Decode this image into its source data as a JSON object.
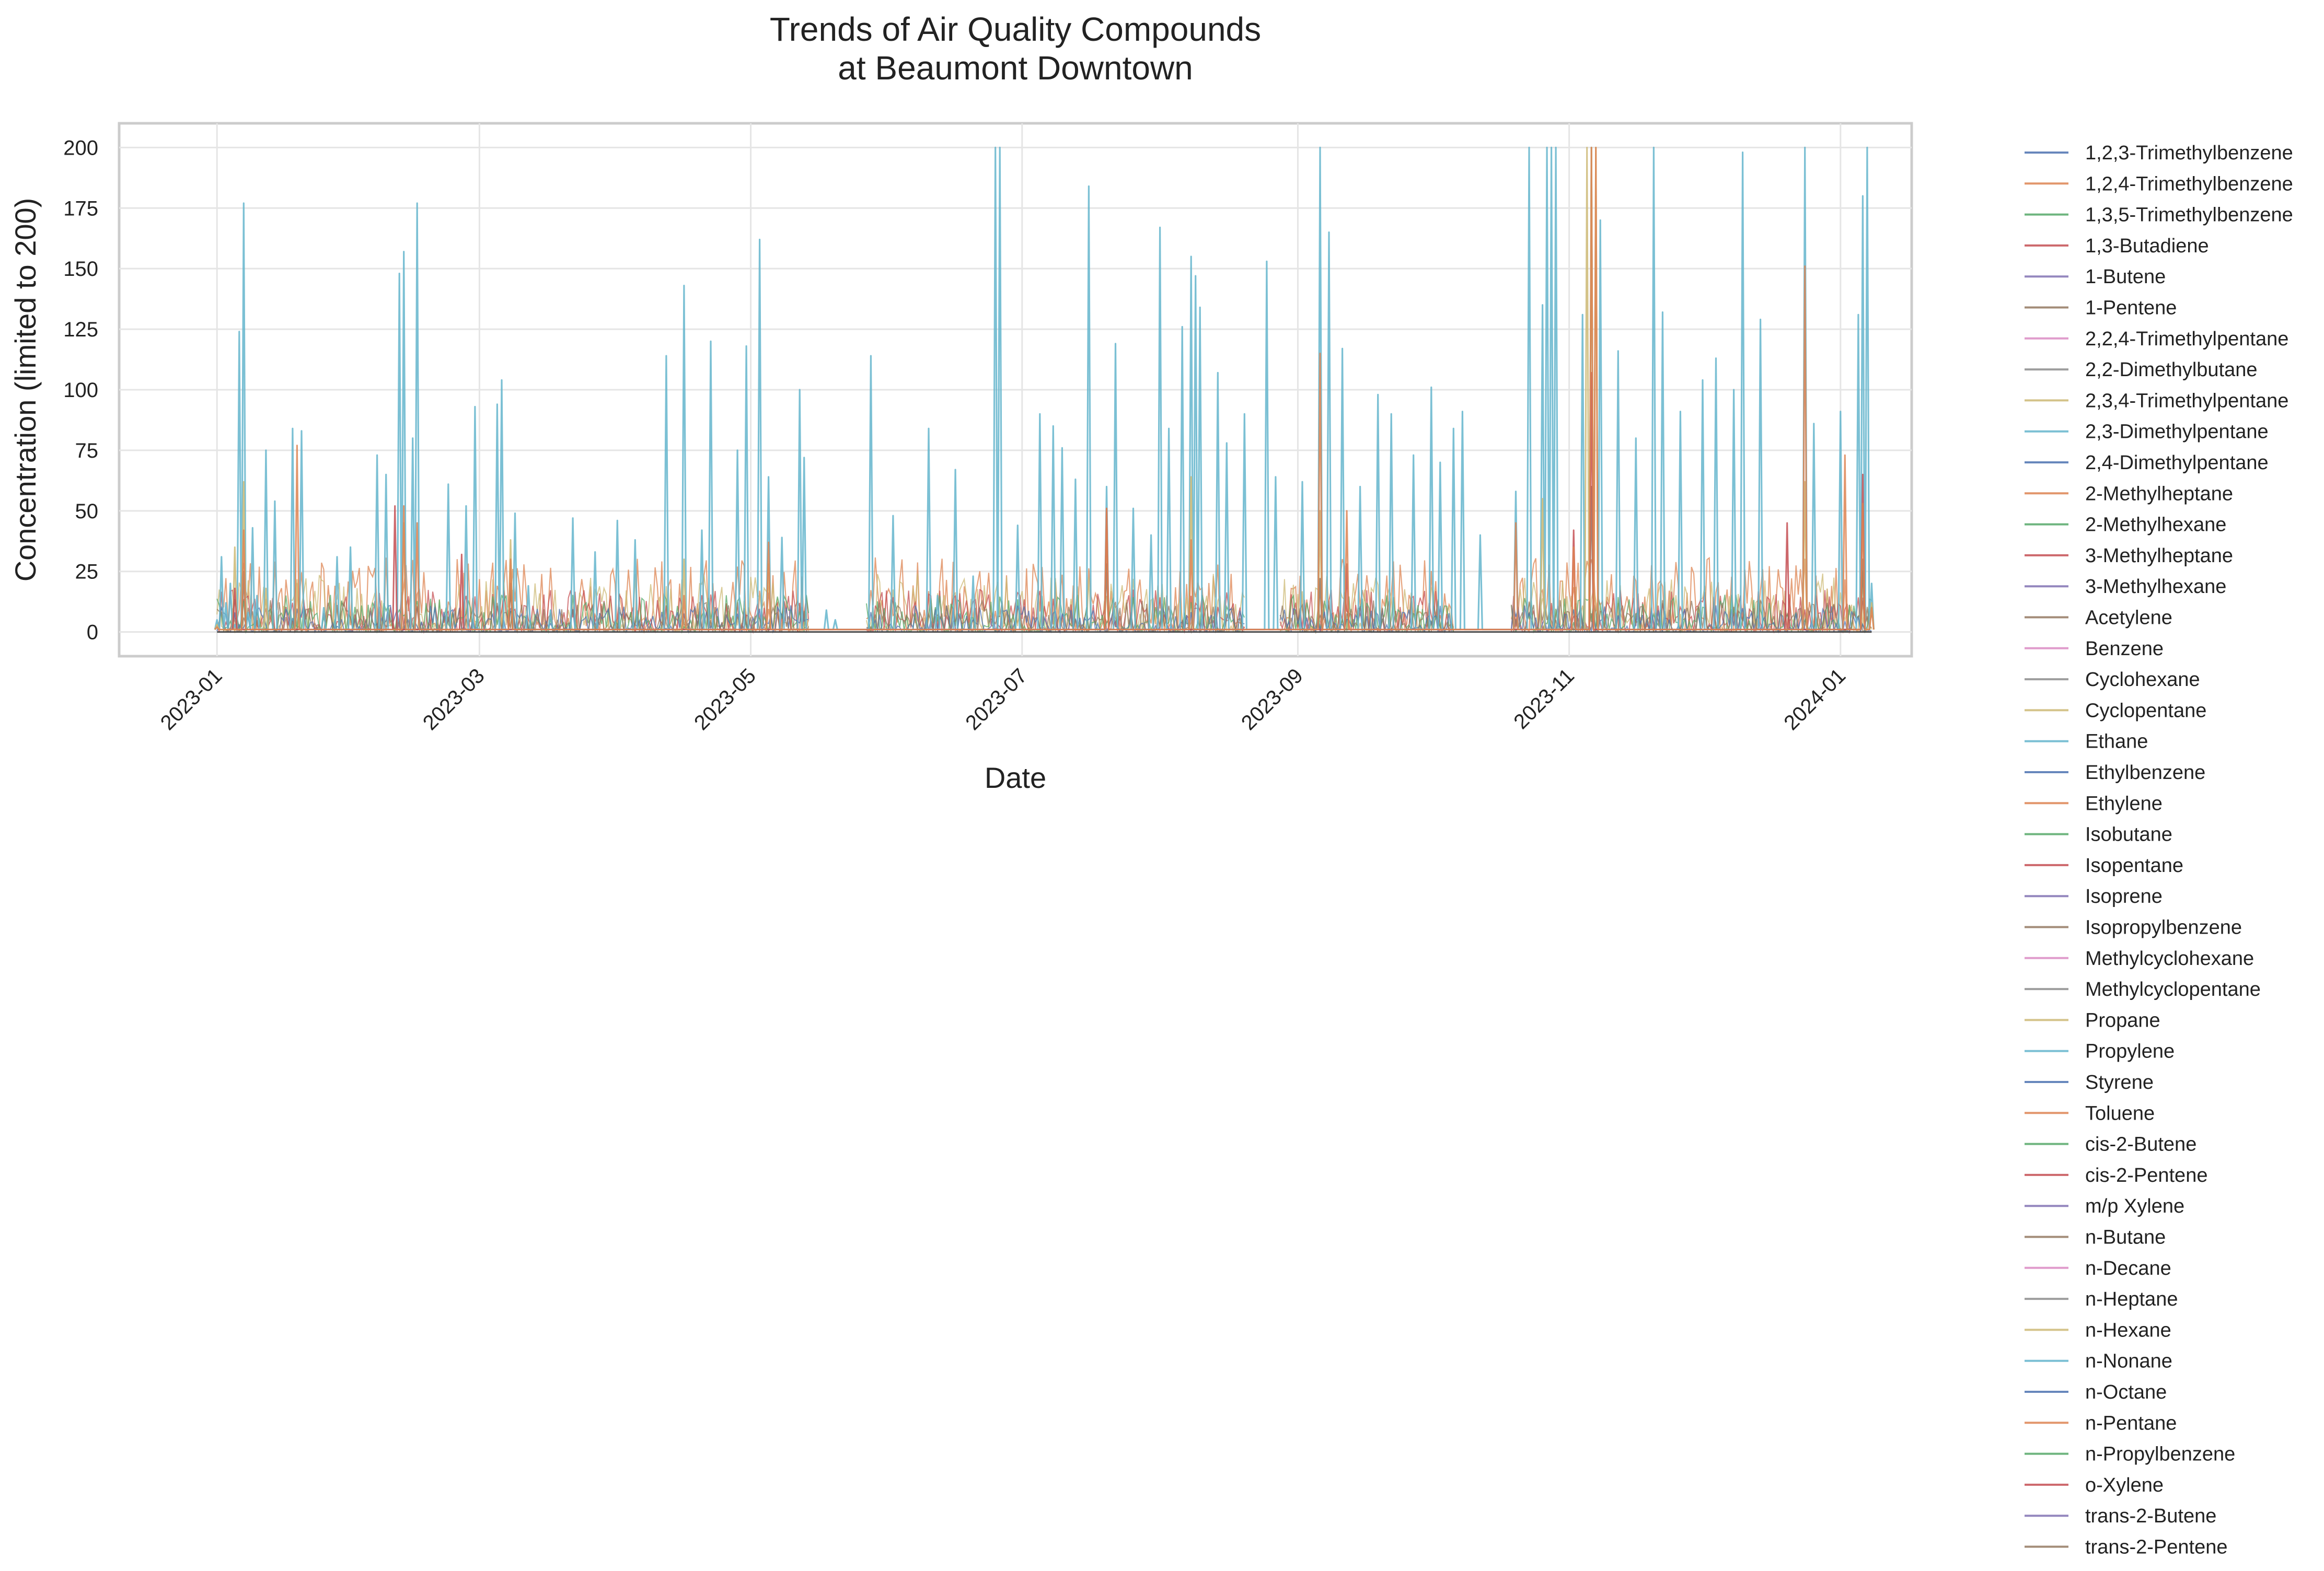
{
  "chart_data": {
    "type": "line",
    "title": [
      "Trends of Air Quality Compounds",
      "at Beaumont Downtown"
    ],
    "xlabel": "Date",
    "ylabel": "Concentration (limited to 200)",
    "x_ticks": [
      "2023-01",
      "2023-03",
      "2023-05",
      "2023-07",
      "2023-09",
      "2023-11",
      "2024-01"
    ],
    "y_ticks": [
      0,
      25,
      50,
      75,
      100,
      125,
      150,
      175,
      200
    ],
    "xlim": [
      "2022-12-10",
      "2024-01-17"
    ],
    "ylim": [
      -10,
      210
    ],
    "grid": true,
    "legend_position": "outside-right",
    "series_names": [
      "1,2,3-Trimethylbenzene",
      "1,2,4-Trimethylbenzene",
      "1,3,5-Trimethylbenzene",
      "1,3-Butadiene",
      "1-Butene",
      "1-Pentene",
      "2,2,4-Trimethylpentane",
      "2,2-Dimethylbutane",
      "2,3,4-Trimethylpentane",
      "2,3-Dimethylpentane",
      "2,4-Dimethylpentane",
      "2-Methylheptane",
      "2-Methylhexane",
      "3-Methylheptane",
      "3-Methylhexane",
      "Acetylene",
      "Benzene",
      "Cyclohexane",
      "Cyclopentane",
      "Ethane",
      "Ethylbenzene",
      "Ethylene",
      "Isobutane",
      "Isopentane",
      "Isoprene",
      "Isopropylbenzene",
      "Methylcyclohexane",
      "Methylcyclopentane",
      "Propane",
      "Propylene",
      "Styrene",
      "Toluene",
      "cis-2-Butene",
      "cis-2-Pentene",
      "m/p Xylene",
      "n-Butane",
      "n-Decane",
      "n-Heptane",
      "n-Hexane",
      "n-Nonane",
      "n-Octane",
      "n-Pentane",
      "n-Propylbenzene",
      "o-Xylene",
      "trans-2-Butene",
      "trans-2-Pentene"
    ],
    "palette": [
      "#4c72b0",
      "#dd8452",
      "#55a868",
      "#c44e52",
      "#8172b3",
      "#937860",
      "#da8bc3",
      "#8c8c8c",
      "#ccb974",
      "#64b5cd"
    ],
    "featured_series": {
      "Ethane": {
        "color": "#64b5cd",
        "points": [
          [
            "2023-01-01",
            5
          ],
          [
            "2023-01-02",
            31
          ],
          [
            "2023-01-03",
            12
          ],
          [
            "2023-01-04",
            20
          ],
          [
            "2023-01-05",
            3
          ],
          [
            "2023-01-06",
            124
          ],
          [
            "2023-01-07",
            177
          ],
          [
            "2023-01-08",
            8
          ],
          [
            "2023-01-09",
            43
          ],
          [
            "2023-01-10",
            15
          ],
          [
            "2023-01-12",
            75
          ],
          [
            "2023-01-14",
            54
          ],
          [
            "2023-01-18",
            84
          ],
          [
            "2023-01-20",
            83
          ],
          [
            "2023-01-25",
            10
          ],
          [
            "2023-01-28",
            31
          ],
          [
            "2023-01-31",
            35
          ],
          [
            "2023-02-06",
            73
          ],
          [
            "2023-02-08",
            65
          ],
          [
            "2023-02-11",
            148
          ],
          [
            "2023-02-12",
            157
          ],
          [
            "2023-02-14",
            80
          ],
          [
            "2023-02-15",
            177
          ],
          [
            "2023-02-22",
            61
          ],
          [
            "2023-02-26",
            52
          ],
          [
            "2023-02-28",
            93
          ],
          [
            "2023-03-05",
            94
          ],
          [
            "2023-03-06",
            104
          ],
          [
            "2023-03-09",
            49
          ],
          [
            "2023-03-12",
            19
          ],
          [
            "2023-03-17",
            9
          ],
          [
            "2023-03-22",
            47
          ],
          [
            "2023-03-27",
            33
          ],
          [
            "2023-04-01",
            46
          ],
          [
            "2023-04-05",
            38
          ],
          [
            "2023-04-12",
            114
          ],
          [
            "2023-04-16",
            143
          ],
          [
            "2023-04-20",
            42
          ],
          [
            "2023-04-22",
            120
          ],
          [
            "2023-04-28",
            75
          ],
          [
            "2023-04-30",
            118
          ],
          [
            "2023-05-03",
            162
          ],
          [
            "2023-05-05",
            64
          ],
          [
            "2023-05-08",
            39
          ],
          [
            "2023-05-12",
            100
          ],
          [
            "2023-05-13",
            72
          ],
          [
            "2023-05-18",
            9
          ],
          [
            "2023-05-20",
            5
          ],
          [
            "2023-05-28",
            114
          ],
          [
            "2023-06-02",
            48
          ],
          [
            "2023-06-10",
            84
          ],
          [
            "2023-06-12",
            15
          ],
          [
            "2023-06-16",
            67
          ],
          [
            "2023-06-20",
            23
          ],
          [
            "2023-06-25",
            200
          ],
          [
            "2023-06-26",
            200
          ],
          [
            "2023-06-30",
            44
          ],
          [
            "2023-07-05",
            90
          ],
          [
            "2023-07-08",
            85
          ],
          [
            "2023-07-10",
            76
          ],
          [
            "2023-07-13",
            63
          ],
          [
            "2023-07-16",
            184
          ],
          [
            "2023-07-20",
            60
          ],
          [
            "2023-07-22",
            119
          ],
          [
            "2023-07-26",
            51
          ],
          [
            "2023-07-30",
            40
          ],
          [
            "2023-08-01",
            167
          ],
          [
            "2023-08-03",
            84
          ],
          [
            "2023-08-06",
            126
          ],
          [
            "2023-08-08",
            155
          ],
          [
            "2023-08-09",
            147
          ],
          [
            "2023-08-10",
            134
          ],
          [
            "2023-08-14",
            107
          ],
          [
            "2023-08-16",
            78
          ],
          [
            "2023-08-20",
            90
          ],
          [
            "2023-08-25",
            153
          ],
          [
            "2023-08-27",
            64
          ],
          [
            "2023-09-02",
            62
          ],
          [
            "2023-09-06",
            200
          ],
          [
            "2023-09-08",
            165
          ],
          [
            "2023-09-11",
            117
          ],
          [
            "2023-09-15",
            60
          ],
          [
            "2023-09-19",
            98
          ],
          [
            "2023-09-22",
            90
          ],
          [
            "2023-09-27",
            73
          ],
          [
            "2023-10-01",
            101
          ],
          [
            "2023-10-03",
            70
          ],
          [
            "2023-10-06",
            84
          ],
          [
            "2023-10-08",
            91
          ],
          [
            "2023-10-12",
            40
          ],
          [
            "2023-10-20",
            58
          ],
          [
            "2023-10-23",
            200
          ],
          [
            "2023-10-26",
            135
          ],
          [
            "2023-10-27",
            200
          ],
          [
            "2023-10-28",
            200
          ],
          [
            "2023-10-29",
            200
          ],
          [
            "2023-11-04",
            131
          ],
          [
            "2023-11-06",
            200
          ],
          [
            "2023-11-08",
            170
          ],
          [
            "2023-11-12",
            116
          ],
          [
            "2023-11-16",
            80
          ],
          [
            "2023-11-20",
            200
          ],
          [
            "2023-11-22",
            132
          ],
          [
            "2023-11-26",
            91
          ],
          [
            "2023-12-01",
            104
          ],
          [
            "2023-12-04",
            113
          ],
          [
            "2023-12-08",
            100
          ],
          [
            "2023-12-10",
            198
          ],
          [
            "2023-12-14",
            129
          ],
          [
            "2023-12-24",
            200
          ],
          [
            "2023-12-26",
            86
          ],
          [
            "2024-01-01",
            91
          ],
          [
            "2024-01-05",
            131
          ],
          [
            "2024-01-06",
            180
          ],
          [
            "2024-01-07",
            200
          ],
          [
            "2024-01-08",
            20
          ]
        ]
      },
      "Propane": {
        "color": "#ccb974",
        "points": [
          [
            "2023-01-01",
            3
          ],
          [
            "2023-01-05",
            35
          ],
          [
            "2023-01-07",
            62
          ],
          [
            "2023-01-12",
            18
          ],
          [
            "2023-01-19",
            20
          ],
          [
            "2023-02-12",
            45
          ],
          [
            "2023-03-08",
            38
          ],
          [
            "2023-04-16",
            30
          ],
          [
            "2023-05-05",
            28
          ],
          [
            "2023-07-20",
            42
          ],
          [
            "2023-08-08",
            64
          ],
          [
            "2023-09-06",
            50
          ],
          [
            "2023-10-26",
            55
          ],
          [
            "2023-11-05",
            200
          ],
          [
            "2023-11-06",
            200
          ],
          [
            "2023-11-07",
            200
          ],
          [
            "2023-12-24",
            62
          ],
          [
            "2024-01-06",
            25
          ],
          [
            "2024-01-08",
            12
          ]
        ]
      },
      "Ethylene": {
        "color": "#dd8452",
        "points": [
          [
            "2023-01-01",
            2
          ],
          [
            "2023-01-07",
            42
          ],
          [
            "2023-01-19",
            77
          ],
          [
            "2023-02-12",
            52
          ],
          [
            "2023-02-15",
            45
          ],
          [
            "2023-03-08",
            30
          ],
          [
            "2023-04-16",
            15
          ],
          [
            "2023-05-05",
            37
          ],
          [
            "2023-07-20",
            51
          ],
          [
            "2023-08-08",
            38
          ],
          [
            "2023-09-06",
            115
          ],
          [
            "2023-09-12",
            50
          ],
          [
            "2023-10-20",
            45
          ],
          [
            "2023-11-02",
            35
          ],
          [
            "2023-11-06",
            200
          ],
          [
            "2023-11-07",
            200
          ],
          [
            "2023-12-24",
            151
          ],
          [
            "2024-01-02",
            73
          ],
          [
            "2024-01-06",
            53
          ],
          [
            "2024-01-08",
            10
          ]
        ]
      },
      "Isopentane": {
        "color": "#c44e52",
        "points": [
          [
            "2023-01-05",
            18
          ],
          [
            "2023-02-10",
            52
          ],
          [
            "2023-02-25",
            32
          ],
          [
            "2023-07-20",
            51
          ],
          [
            "2023-09-12",
            28
          ],
          [
            "2023-11-02",
            42
          ],
          [
            "2023-11-06",
            107
          ],
          [
            "2023-12-20",
            45
          ],
          [
            "2024-01-06",
            65
          ]
        ]
      },
      "n-Butane": {
        "color": "#937860",
        "points": [
          [
            "2023-01-07",
            25
          ],
          [
            "2023-03-08",
            20
          ],
          [
            "2023-07-20",
            28
          ],
          [
            "2023-09-06",
            22
          ],
          [
            "2023-11-06",
            60
          ],
          [
            "2024-01-06",
            30
          ]
        ]
      }
    }
  }
}
